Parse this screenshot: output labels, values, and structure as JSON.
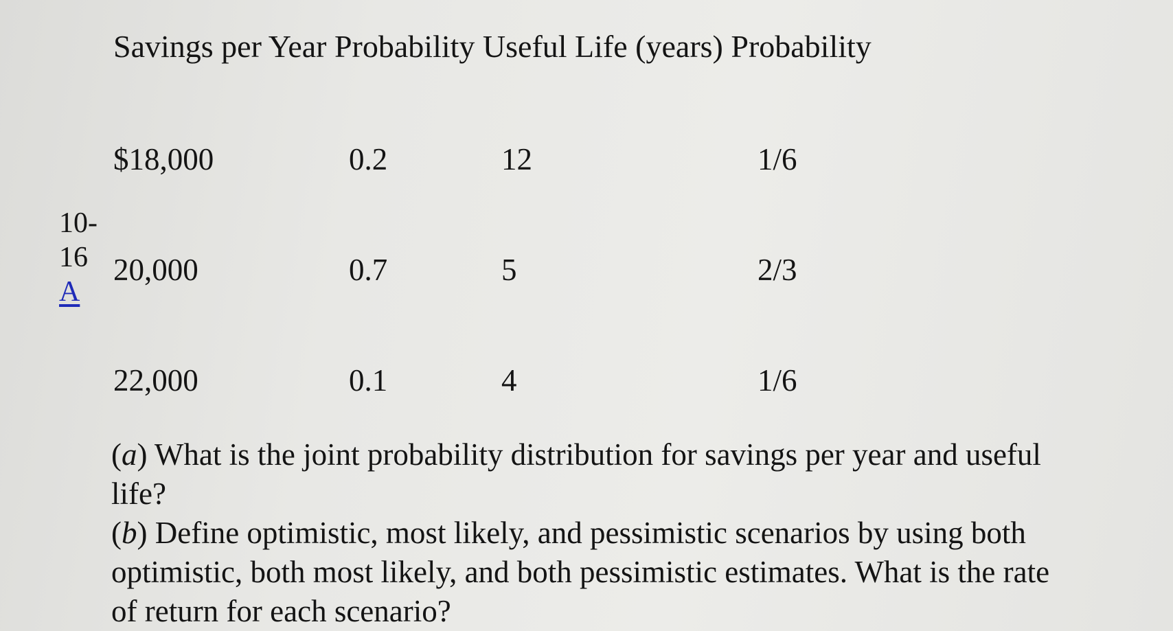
{
  "header": "Savings per Year Probability Useful Life (years) Probability",
  "problem": {
    "number_line1": "10-",
    "number_line2": "16",
    "link": "A"
  },
  "table": {
    "rows": [
      {
        "savings": "$18,000",
        "savings_probability": "0.2",
        "life": "12",
        "life_probability": "1/6"
      },
      {
        "savings": "20,000",
        "savings_probability": "0.7",
        "life": "5",
        "life_probability": "2/3"
      },
      {
        "savings": "22,000",
        "savings_probability": "0.1",
        "life": "4",
        "life_probability": "1/6"
      }
    ]
  },
  "questions": {
    "a_letter": "a",
    "a_text": " What is the joint probability distribution for savings per year and useful life?",
    "b_letter": "b",
    "b_text": " Define optimistic, most likely, and pessimistic scenarios by using both optimistic, both most likely, and both pessimistic estimates. What is the rate of return for each scenario?"
  }
}
